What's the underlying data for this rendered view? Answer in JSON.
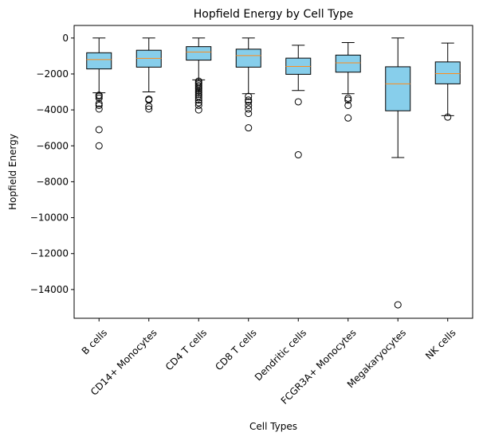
{
  "chart_data": {
    "type": "box",
    "title": "Hopfield Energy by Cell Type",
    "xlabel": "Cell Types",
    "ylabel": "Hopfield Energy",
    "ylim": [
      -15600,
      700
    ],
    "yticks": [
      0,
      -2000,
      -4000,
      -6000,
      -8000,
      -10000,
      -12000,
      -14000
    ],
    "ytick_labels": [
      "0",
      "−2000",
      "−4000",
      "−6000",
      "−8000",
      "−10000",
      "−12000",
      "−14000"
    ],
    "grid": false,
    "colors": {
      "box_fill": "#87CEEB",
      "median": "#FF8C1A",
      "edge": "#000000"
    },
    "categories": [
      "B cells",
      "CD14+ Monocytes",
      "CD4 T cells",
      "CD8 T cells",
      "Dendritic cells",
      "FCGR3A+ Monocytes",
      "Megakaryocytes",
      "NK cells"
    ],
    "boxes": [
      {
        "category": "B cells",
        "whisker_high": 0,
        "q3": -820,
        "median": -1200,
        "q1": -1720,
        "whisker_low": -3050,
        "outliers": [
          -3180,
          -3250,
          -3350,
          -3650,
          -3750,
          -3950,
          -5100,
          -6000
        ]
      },
      {
        "category": "CD14+ Monocytes",
        "whisker_high": 0,
        "q3": -680,
        "median": -1130,
        "q1": -1620,
        "whisker_low": -3000,
        "outliers": [
          -3400,
          -3450,
          -3800,
          -3950
        ]
      },
      {
        "category": "CD4 T cells",
        "whisker_high": 0,
        "q3": -480,
        "median": -780,
        "q1": -1230,
        "whisker_low": -2330,
        "outliers": [
          -2400,
          -2480,
          -2560,
          -2650,
          -2740,
          -2830,
          -2930,
          -3030,
          -3130,
          -3230,
          -3330,
          -3450,
          -3600,
          -3750,
          -4000
        ]
      },
      {
        "category": "CD8 T cells",
        "whisker_high": 0,
        "q3": -620,
        "median": -980,
        "q1": -1620,
        "whisker_low": -3100,
        "outliers": [
          -3250,
          -3450,
          -3550,
          -3750,
          -3950,
          -4200,
          -5000
        ]
      },
      {
        "category": "Dendritic cells",
        "whisker_high": -400,
        "q3": -1120,
        "median": -1580,
        "q1": -2020,
        "whisker_low": -2920,
        "outliers": [
          -3550,
          -6500
        ]
      },
      {
        "category": "FCGR3A+ Monocytes",
        "whisker_high": -250,
        "q3": -950,
        "median": -1380,
        "q1": -1900,
        "whisker_low": -3100,
        "outliers": [
          -3350,
          -3450,
          -3750,
          -4450
        ]
      },
      {
        "category": "Megakaryocytes",
        "whisker_high": 0,
        "q3": -1600,
        "median": -2550,
        "q1": -4050,
        "whisker_low": -6650,
        "outliers": [
          -14850
        ]
      },
      {
        "category": "NK cells",
        "whisker_high": -280,
        "q3": -1330,
        "median": -1980,
        "q1": -2550,
        "whisker_low": -4320,
        "outliers": [
          -4400
        ]
      }
    ]
  }
}
